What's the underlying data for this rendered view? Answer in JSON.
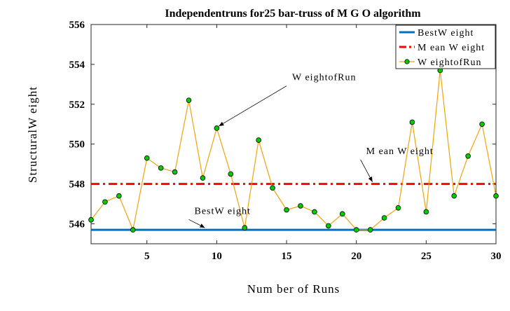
{
  "chart_data": {
    "type": "line",
    "title": "Independentruns  for25 bar-truss of M G O algorithm",
    "xlabel": "Num ber of Runs",
    "ylabel": "StructuralW eight",
    "xlim": [
      1,
      30
    ],
    "ylim": [
      545,
      556
    ],
    "xticks": [
      5,
      10,
      15,
      20,
      25,
      30
    ],
    "yticks": [
      546,
      548,
      550,
      552,
      554,
      556
    ],
    "grid": false,
    "legend_position": "top-right",
    "series": [
      {
        "name": "BestW eight",
        "color": "#0072bd",
        "style": "solid",
        "x": [
          1,
          30
        ],
        "values": [
          545.7,
          545.7
        ]
      },
      {
        "name": "M ean W eight",
        "color": "#ff0000",
        "style": "dashdot",
        "x": [
          1,
          30
        ],
        "values": [
          548.0,
          548.0
        ]
      },
      {
        "name": "W eightofRun",
        "color": "#f0a30a",
        "marker_color": "#00cc00",
        "style": "solid",
        "x": [
          1,
          2,
          3,
          4,
          5,
          6,
          7,
          8,
          9,
          10,
          11,
          12,
          13,
          14,
          15,
          16,
          17,
          18,
          19,
          20,
          21,
          22,
          23,
          24,
          25,
          26,
          27,
          28,
          29,
          30
        ],
        "values": [
          546.2,
          547.1,
          547.4,
          545.7,
          549.3,
          548.8,
          548.6,
          552.2,
          548.3,
          550.8,
          548.5,
          545.8,
          550.2,
          547.8,
          546.7,
          546.9,
          546.6,
          545.9,
          546.5,
          545.7,
          545.7,
          546.3,
          546.8,
          551.1,
          546.6,
          553.7,
          547.4,
          549.4,
          551.0,
          547.4
        ]
      }
    ],
    "annotations": [
      {
        "text": "W eightofRun",
        "point": [
          10,
          550.8
        ],
        "text_pos": [
          15.4,
          553.2
        ]
      },
      {
        "text": "M ean W eight",
        "point": [
          21,
          548.0
        ],
        "text_pos": [
          20.7,
          549.5
        ]
      },
      {
        "text": "BestW eight",
        "point": [
          9,
          545.7
        ],
        "text_pos": [
          8.4,
          546.5
        ]
      }
    ]
  }
}
